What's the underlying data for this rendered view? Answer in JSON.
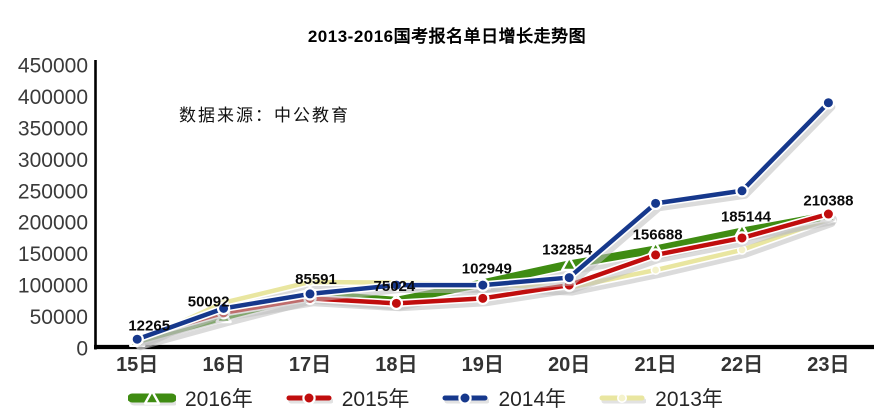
{
  "chart_data": {
    "type": "line",
    "title": "2013-2016国考报名单日增长走势图",
    "annotation": "数据来源：中公教育",
    "categories": [
      "15日",
      "16日",
      "17日",
      "18日",
      "19日",
      "20日",
      "21日",
      "22日",
      "23日"
    ],
    "xlabel": "",
    "ylabel": "",
    "ylim": [
      0,
      450000
    ],
    "ytick_step": 50000,
    "grid": false,
    "legend_position": "bottom",
    "draw_order": [
      "2013年",
      "2016年",
      "2015年",
      "2014年"
    ],
    "series": [
      {
        "name": "2016年",
        "color": "#3f8c12",
        "marker": "triangle",
        "line_width": 8,
        "data_labels": true,
        "values": [
          12265,
          50092,
          85591,
          75024,
          102949,
          132854,
          156688,
          185144,
          210388
        ]
      },
      {
        "name": "2015年",
        "color": "#c00d0d",
        "marker": "circle",
        "line_width": 4.5,
        "data_labels": false,
        "values": [
          17000,
          56000,
          79000,
          71000,
          79000,
          100000,
          148000,
          175000,
          213000
        ]
      },
      {
        "name": "2014年",
        "color": "#16388c",
        "marker": "circle",
        "line_width": 4.5,
        "data_labels": false,
        "values": [
          14000,
          63000,
          86000,
          100000,
          100000,
          112000,
          230000,
          250000,
          390000
        ]
      },
      {
        "name": "2013年",
        "color": "#e9e6a0",
        "marker": "circle-small",
        "marker_color": "#f4f2cc",
        "line_width": 4.5,
        "data_labels": false,
        "values": [
          9000,
          72000,
          105000,
          104000,
          101000,
          96000,
          124000,
          156000,
          205000
        ]
      }
    ]
  }
}
